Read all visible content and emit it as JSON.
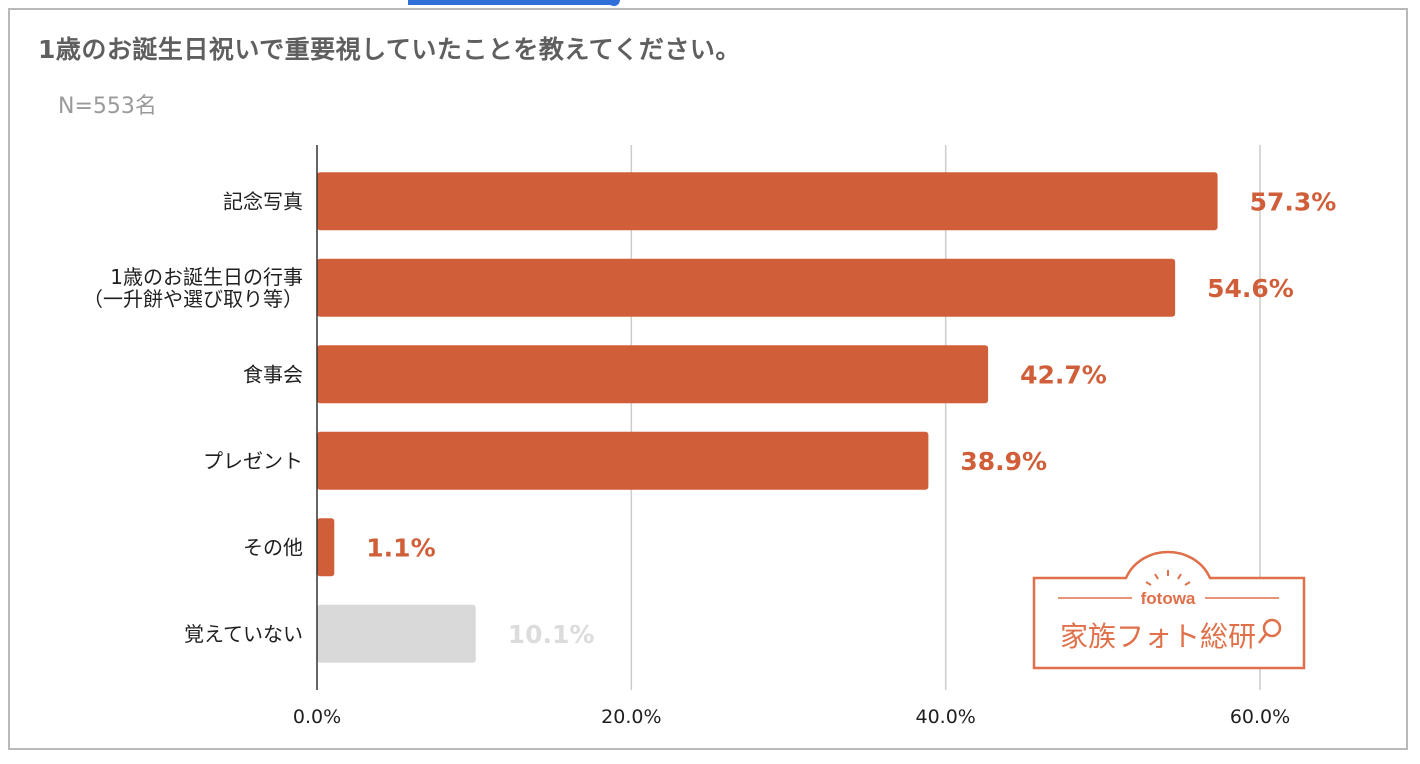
{
  "title": "1歳のお誕生日祝いで重要視していたことを教えてください。",
  "subtitle": "N=553名",
  "logo": {
    "brand": "fotowa",
    "text": "家族フォト総研"
  },
  "colors": {
    "primary": "#d05f39",
    "muted": "#d9d9d9",
    "muted_text": "#dcdcdc",
    "grid": "#cccccc",
    "axis": "#333333"
  },
  "chart_data": {
    "type": "bar",
    "orientation": "horizontal",
    "categories": [
      [
        "記念写真"
      ],
      [
        "1歳のお誕生日の行事",
        "（一升餅や選び取り等）"
      ],
      [
        "食事会"
      ],
      [
        "プレゼント"
      ],
      [
        "その他"
      ],
      [
        "覚えていない"
      ]
    ],
    "values": [
      57.3,
      54.6,
      42.7,
      38.9,
      1.1,
      10.1
    ],
    "value_labels": [
      "57.3%",
      "54.6%",
      "42.7%",
      "38.9%",
      "1.1%",
      "10.1%"
    ],
    "highlight": [
      true,
      true,
      true,
      true,
      true,
      false
    ],
    "xlim": [
      0,
      60
    ],
    "x_ticks": [
      0,
      20,
      40,
      60
    ],
    "x_tick_labels": [
      "0.0%",
      "20.0%",
      "40.0%",
      "60.0%"
    ],
    "grid": true
  }
}
